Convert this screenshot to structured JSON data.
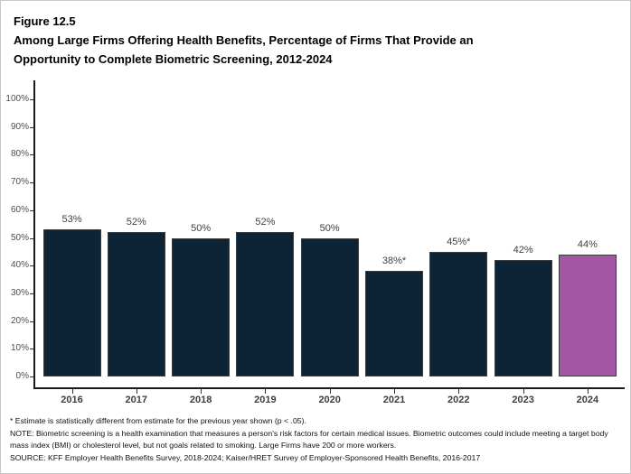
{
  "figure": {
    "label": "Figure 12.5",
    "title_lines": [
      "Among Large Firms Offering Health Benefits, Percentage of Firms That Provide an",
      "Opportunity to Complete Biometric Screening, 2012-2024"
    ]
  },
  "chart_data": {
    "type": "bar",
    "categories": [
      "2016",
      "2017",
      "2018",
      "2019",
      "2020",
      "2021",
      "2022",
      "2023",
      "2024"
    ],
    "values": [
      53,
      52,
      50,
      52,
      50,
      38,
      45,
      42,
      44
    ],
    "value_labels": [
      "53%",
      "52%",
      "50%",
      "52%",
      "50%",
      "38%*",
      "45%*",
      "42%",
      "44%"
    ],
    "title": "Among Large Firms Offering Health Benefits, Percentage of Firms That Provide an Opportunity to Complete Biometric Screening, 2012-2024",
    "xlabel": "",
    "ylabel": "",
    "ylim": [
      0,
      100
    ],
    "ytick_labels": [
      "0%",
      "10%",
      "20%",
      "30%",
      "40%",
      "50%",
      "60%",
      "70%",
      "80%",
      "90%",
      "100%"
    ],
    "grid": "off",
    "legend": "none",
    "colors": {
      "bar_default": "#0D2437",
      "bar_highlight": "#A356A3",
      "axis": "#1a1a1a"
    },
    "highlight_index": 8
  },
  "footnotes": [
    "* Estimate is statistically different from estimate for the previous year shown (p < .05).",
    "NOTE: Biometric screening is a health examination that measures a person's risk factors for certain medical issues. Biometric outcomes could include meeting a target body mass index (BMI) or cholesterol level, but not goals related to smoking. Large Firms have 200 or more workers.",
    "SOURCE: KFF Employer Health Benefits Survey, 2018-2024; Kaiser/HRET Survey of Employer-Sponsored Health Benefits, 2016-2017"
  ]
}
